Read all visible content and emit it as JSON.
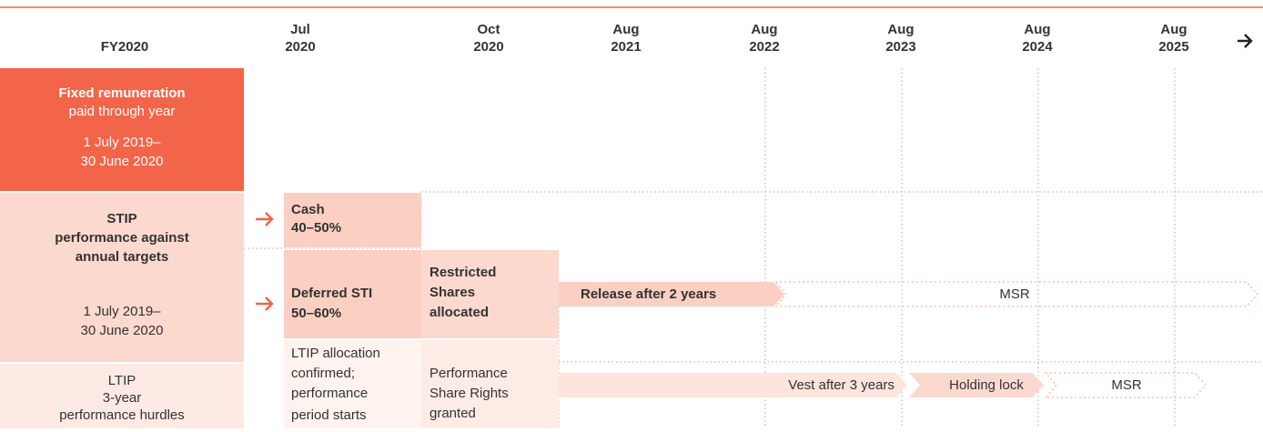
{
  "header": {
    "columns": [
      {
        "lines": [
          "FY2020"
        ]
      },
      {
        "lines": [
          "Jul",
          "2020"
        ]
      },
      {
        "lines": [
          "Oct",
          "2020"
        ]
      },
      {
        "lines": [
          "Aug",
          "2021"
        ]
      },
      {
        "lines": [
          "Aug",
          "2022"
        ]
      },
      {
        "lines": [
          "Aug",
          "2023"
        ]
      },
      {
        "lines": [
          "Aug",
          "2024"
        ]
      },
      {
        "lines": [
          "Aug",
          "2025"
        ]
      }
    ]
  },
  "fixed": {
    "title": "Fixed remuneration",
    "subtitle": "paid through year",
    "period": [
      "1 July 2019–",
      "30 June 2020"
    ]
  },
  "stip": {
    "title": [
      "STIP",
      "performance against",
      "annual targets"
    ],
    "period": [
      "1 July 2019–",
      "30 June 2020"
    ],
    "cash": [
      "Cash",
      "40–50%"
    ],
    "deferred": [
      "Deferred STI",
      "50–60%"
    ],
    "restricted": [
      "Restricted",
      "Shares",
      "allocated"
    ],
    "release": "Release after 2 years",
    "msr": "MSR"
  },
  "ltip": {
    "title": "LTIP",
    "subtitle": [
      "3-year",
      "performance hurdles"
    ],
    "allocation": [
      "LTIP allocation",
      "confirmed;",
      "performance",
      "period starts"
    ],
    "rights": [
      "Performance",
      "Share Rights",
      "granted"
    ],
    "vest": "Vest after 3 years",
    "holding": "Holding lock",
    "msr": "MSR"
  }
}
